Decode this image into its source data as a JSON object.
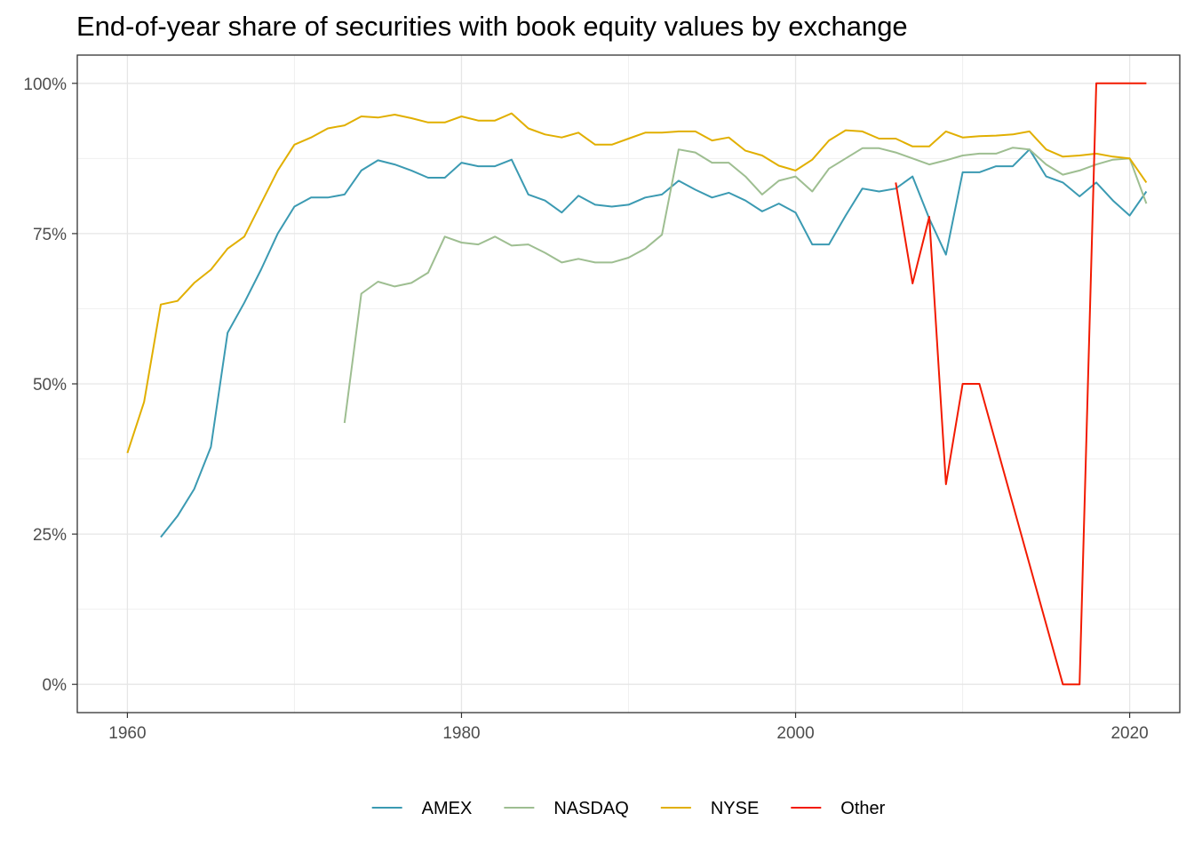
{
  "chart_data": {
    "type": "line",
    "title": "End-of-year share of securities with book equity values by exchange",
    "xlabel": "",
    "ylabel": "",
    "xlim": [
      1957,
      2023
    ],
    "ylim": [
      -0.047,
      1.047
    ],
    "x_ticks": [
      1960,
      1980,
      2000,
      2020
    ],
    "x_tick_labels": [
      "1960",
      "1980",
      "2000",
      "2020"
    ],
    "y_ticks": [
      0,
      0.25,
      0.5,
      0.75,
      1.0
    ],
    "y_tick_labels": [
      "0%",
      "25%",
      "50%",
      "75%",
      "100%"
    ],
    "grid": true,
    "legend_position": "bottom",
    "series": [
      {
        "name": "AMEX",
        "color": "#3B9AB2",
        "x": [
          1962,
          1963,
          1964,
          1965,
          1966,
          1967,
          1968,
          1969,
          1970,
          1971,
          1972,
          1973,
          1974,
          1975,
          1976,
          1977,
          1978,
          1979,
          1980,
          1981,
          1982,
          1983,
          1984,
          1985,
          1986,
          1987,
          1988,
          1989,
          1990,
          1991,
          1992,
          1993,
          1994,
          1995,
          1996,
          1997,
          1998,
          1999,
          2000,
          2001,
          2002,
          2003,
          2004,
          2005,
          2006,
          2007,
          2008,
          2009,
          2010,
          2011,
          2012,
          2013,
          2014,
          2015,
          2016,
          2017,
          2018,
          2019,
          2020,
          2021
        ],
        "y": [
          0.245,
          0.28,
          0.325,
          0.395,
          0.585,
          0.635,
          0.69,
          0.75,
          0.795,
          0.81,
          0.81,
          0.815,
          0.855,
          0.872,
          0.865,
          0.855,
          0.843,
          0.843,
          0.868,
          0.862,
          0.862,
          0.873,
          0.815,
          0.805,
          0.785,
          0.813,
          0.798,
          0.795,
          0.798,
          0.81,
          0.815,
          0.838,
          0.823,
          0.81,
          0.818,
          0.805,
          0.787,
          0.8,
          0.785,
          0.732,
          0.732,
          0.78,
          0.825,
          0.82,
          0.825,
          0.845,
          0.775,
          0.715,
          0.852,
          0.852,
          0.862,
          0.862,
          0.89,
          0.845,
          0.835,
          0.812,
          0.835,
          0.805,
          0.78,
          0.82
        ]
      },
      {
        "name": "NASDAQ",
        "color": "#9EBE91",
        "x": [
          1973,
          1974,
          1975,
          1976,
          1977,
          1978,
          1979,
          1980,
          1981,
          1982,
          1983,
          1984,
          1985,
          1986,
          1987,
          1988,
          1989,
          1990,
          1991,
          1992,
          1993,
          1994,
          1995,
          1996,
          1997,
          1998,
          1999,
          2000,
          2001,
          2002,
          2003,
          2004,
          2005,
          2006,
          2007,
          2008,
          2009,
          2010,
          2011,
          2012,
          2013,
          2014,
          2015,
          2016,
          2017,
          2018,
          2019,
          2020,
          2021
        ],
        "y": [
          0.435,
          0.65,
          0.67,
          0.662,
          0.668,
          0.685,
          0.745,
          0.735,
          0.732,
          0.745,
          0.73,
          0.732,
          0.718,
          0.702,
          0.708,
          0.702,
          0.702,
          0.71,
          0.725,
          0.748,
          0.89,
          0.885,
          0.868,
          0.868,
          0.845,
          0.815,
          0.838,
          0.845,
          0.82,
          0.858,
          0.875,
          0.892,
          0.892,
          0.885,
          0.875,
          0.865,
          0.872,
          0.88,
          0.883,
          0.883,
          0.893,
          0.89,
          0.865,
          0.848,
          0.855,
          0.865,
          0.873,
          0.875,
          0.8
        ]
      },
      {
        "name": "NYSE",
        "color": "#E1AF00",
        "x": [
          1960,
          1961,
          1962,
          1963,
          1964,
          1965,
          1966,
          1967,
          1968,
          1969,
          1970,
          1971,
          1972,
          1973,
          1974,
          1975,
          1976,
          1977,
          1978,
          1979,
          1980,
          1981,
          1982,
          1983,
          1984,
          1985,
          1986,
          1987,
          1988,
          1989,
          1990,
          1991,
          1992,
          1993,
          1994,
          1995,
          1996,
          1997,
          1998,
          1999,
          2000,
          2001,
          2002,
          2003,
          2004,
          2005,
          2006,
          2007,
          2008,
          2009,
          2010,
          2011,
          2012,
          2013,
          2014,
          2015,
          2016,
          2017,
          2018,
          2019,
          2020,
          2021
        ],
        "y": [
          0.385,
          0.47,
          0.632,
          0.638,
          0.668,
          0.69,
          0.725,
          0.745,
          0.8,
          0.855,
          0.898,
          0.91,
          0.925,
          0.93,
          0.945,
          0.943,
          0.948,
          0.942,
          0.935,
          0.935,
          0.945,
          0.938,
          0.938,
          0.95,
          0.925,
          0.915,
          0.91,
          0.918,
          0.898,
          0.898,
          0.908,
          0.918,
          0.918,
          0.92,
          0.92,
          0.905,
          0.91,
          0.888,
          0.88,
          0.863,
          0.855,
          0.873,
          0.905,
          0.922,
          0.92,
          0.908,
          0.908,
          0.895,
          0.895,
          0.92,
          0.91,
          0.912,
          0.913,
          0.915,
          0.92,
          0.89,
          0.878,
          0.88,
          0.883,
          0.878,
          0.875,
          0.835
        ]
      },
      {
        "name": "Other",
        "color": "#F21A00",
        "x": [
          2006,
          2007,
          2008,
          2009,
          2010,
          2011,
          2016,
          2017,
          2018,
          2019,
          2020,
          2021
        ],
        "y": [
          0.835,
          0.667,
          0.778,
          0.333,
          0.5,
          0.5,
          0.0,
          0.0,
          1.0,
          1.0,
          1.0,
          1.0
        ]
      }
    ]
  }
}
